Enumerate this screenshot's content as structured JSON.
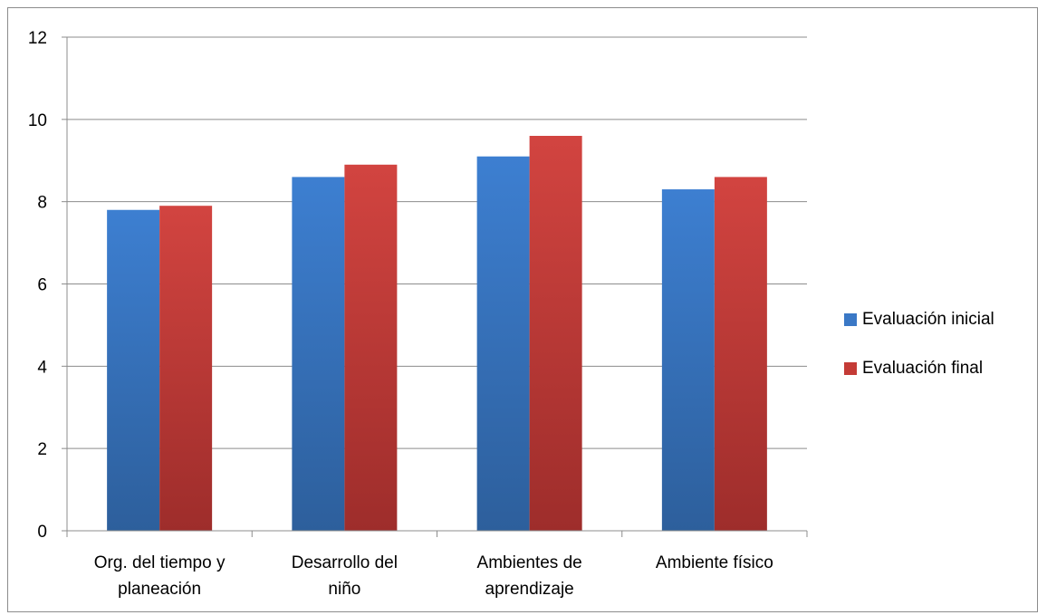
{
  "chart_data": {
    "type": "bar",
    "categories": [
      [
        "Org. del tiempo y",
        "planeación"
      ],
      [
        "Desarrollo del",
        "niño"
      ],
      [
        "Ambientes de",
        "aprendizaje"
      ],
      [
        "Ambiente físico"
      ]
    ],
    "series": [
      {
        "name": "Evaluación inicial",
        "values": [
          7.8,
          8.6,
          9.1,
          8.3
        ],
        "color": "#3a78c6"
      },
      {
        "name": "Evaluación final",
        "values": [
          7.9,
          8.9,
          9.6,
          8.6
        ],
        "color": "#c43b36"
      }
    ],
    "yticks": [
      "0",
      "2",
      "4",
      "6",
      "8",
      "10",
      "12"
    ],
    "ylim": [
      0,
      12
    ],
    "grid": true,
    "legend_position": "right"
  }
}
